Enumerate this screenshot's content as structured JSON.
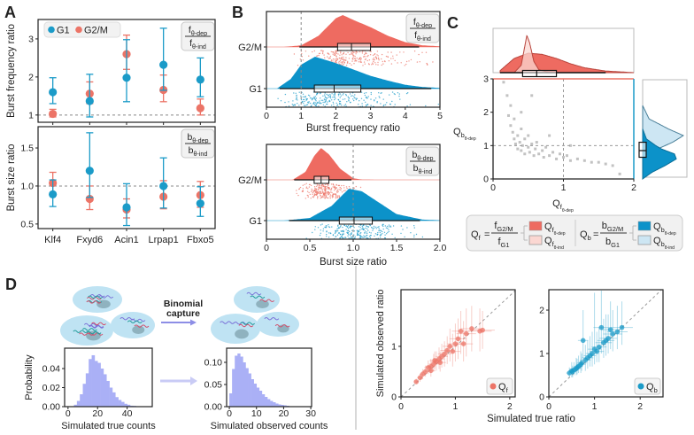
{
  "panels": {
    "a": "A",
    "b": "B",
    "c": "C",
    "d": "D"
  },
  "colors": {
    "g1": "#1b9bc8",
    "g2m": "#ec7467",
    "g1_fill": "#0c92c9",
    "g2m_fill": "#ee6b61",
    "light_red": "#fbd7d2",
    "light_blue": "#cde6f3",
    "hist": "#aab0f6",
    "scatter_gray": "#9a9a9a",
    "arrow": "#8d8ee6"
  },
  "legend_a": {
    "g1": "G1",
    "g2m": "G2/M"
  },
  "ratio_labels": {
    "f": {
      "num_main": "f",
      "num_sub": "θ-dep",
      "den_main": "f",
      "den_sub": "θ-ind"
    },
    "b": {
      "num_main": "b",
      "num_sub": "θ-dep",
      "den_main": "b",
      "den_sub": "θ-ind"
    }
  },
  "legend_c": {
    "qf": {
      "lhs_main": "Q",
      "lhs_sub": "f",
      "eq": "=",
      "num_main": "f",
      "num_sub": "G2/M",
      "den_main": "f",
      "den_sub": "G1",
      "dep": {
        "main": "Q",
        "sub": "f",
        "sub2": "θ-dep"
      },
      "ind": {
        "main": "Q",
        "sub": "f",
        "sub2": "θ-ind"
      }
    },
    "qb": {
      "lhs_main": "Q",
      "lhs_sub": "b",
      "eq": "=",
      "num_main": "b",
      "num_sub": "G2/M",
      "den_main": "b",
      "den_sub": "G1",
      "dep": {
        "main": "Q",
        "sub": "b",
        "sub2": "θ-dep"
      },
      "ind": {
        "main": "Q",
        "sub": "b",
        "sub2": "θ-ind"
      }
    }
  },
  "panel_d": {
    "capture_label": [
      "Binomial",
      "capture"
    ],
    "shared_xlabel": "Simulated true ratio",
    "legend_qf": {
      "main": "Q",
      "sub": "f"
    },
    "legend_qb": {
      "main": "Q",
      "sub": "b"
    }
  },
  "chart_data": [
    {
      "type": "errorbar",
      "ylabel": "Burst frequency ratio",
      "categories": [
        "Klf4",
        "Fxyd6",
        "Acin1",
        "Lrpap1",
        "Fbxo5"
      ],
      "ylim": [
        0.81,
        3.51
      ],
      "yticks": [
        1,
        2,
        3
      ],
      "ytick_labels": [
        "1",
        "2",
        "3"
      ],
      "reference_line": 1,
      "legend": "top-left",
      "series": [
        {
          "name": "G1",
          "values": [
            1.6,
            1.37,
            1.98,
            2.32,
            1.93
          ],
          "lower": [
            1.3,
            0.95,
            1.35,
            1.65,
            1.48
          ],
          "upper": [
            1.98,
            2.07,
            2.98,
            3.28,
            2.5
          ]
        },
        {
          "name": "G2/M",
          "values": [
            1.03,
            1.56,
            2.6,
            1.66,
            1.18
          ],
          "lower": [
            0.95,
            1.3,
            2.2,
            1.35,
            1.0
          ],
          "upper": [
            1.15,
            1.87,
            3.1,
            2.05,
            1.42
          ]
        }
      ]
    },
    {
      "type": "errorbar",
      "ylabel": "Burst size ratio",
      "categories": [
        "Klf4",
        "Fxyd6",
        "Acin1",
        "Lrpap1",
        "Fbxo5"
      ],
      "ylim": [
        0.44,
        1.78
      ],
      "yticks": [
        0.5,
        1.0,
        1.5
      ],
      "ytick_labels": [
        "0.5",
        "1.0",
        "1.5"
      ],
      "reference_line": 1,
      "series": [
        {
          "name": "G1",
          "values": [
            0.89,
            1.2,
            0.72,
            1.0,
            0.77
          ],
          "lower": [
            0.73,
            0.85,
            0.48,
            0.71,
            0.6
          ],
          "upper": [
            1.08,
            1.7,
            1.03,
            1.37,
            0.99
          ]
        },
        {
          "name": "G2/M",
          "values": [
            1.04,
            0.83,
            0.69,
            0.86,
            0.88
          ],
          "lower": [
            0.9,
            0.69,
            0.58,
            0.7,
            0.72
          ],
          "upper": [
            1.18,
            1.0,
            0.83,
            1.07,
            1.06
          ]
        }
      ]
    },
    {
      "type": "raincloud",
      "xlabel": "Burst frequency ratio",
      "xlim": [
        0,
        5
      ],
      "xticks": [
        0,
        1,
        2,
        3,
        4,
        5
      ],
      "xtick_labels": [
        "0",
        "1",
        "2",
        "3",
        "4",
        "5"
      ],
      "reference_line": 1,
      "categories": [
        "G2/M",
        "G1"
      ],
      "series": [
        {
          "name": "G2/M",
          "box": {
            "whisker_low": 0.95,
            "q1": 2.05,
            "median": 2.45,
            "q3": 3.0,
            "whisker_high": 4.4
          },
          "density": {
            "x": [
              0.5,
              1,
              1.5,
              2,
              2.2,
              2.5,
              3,
              3.5,
              4,
              4.5,
              5
            ],
            "y": [
              0,
              0.05,
              0.35,
              0.9,
              1,
              0.85,
              0.62,
              0.35,
              0.15,
              0.05,
              0.02
            ]
          }
        },
        {
          "name": "G1",
          "box": {
            "whisker_low": 0.38,
            "q1": 1.38,
            "median": 1.95,
            "q3": 2.72,
            "whisker_high": 4.75
          },
          "density": {
            "x": [
              0.3,
              0.7,
              1,
              1.4,
              2,
              2.5,
              3,
              3.5,
              4,
              4.5,
              5
            ],
            "y": [
              0,
              0.3,
              0.75,
              1,
              0.8,
              0.6,
              0.4,
              0.25,
              0.12,
              0.05,
              0.02
            ]
          }
        }
      ]
    },
    {
      "type": "raincloud",
      "xlabel": "Burst size ratio",
      "xlim": [
        0,
        2
      ],
      "xticks": [
        0,
        0.5,
        1,
        1.5,
        2
      ],
      "xtick_labels": [
        "0",
        "0.5",
        "1.0",
        "1.5",
        "2.0"
      ],
      "reference_line": 1,
      "categories": [
        "G2/M",
        "G1"
      ],
      "series": [
        {
          "name": "G2/M",
          "box": {
            "whisker_low": 0.32,
            "q1": 0.55,
            "median": 0.63,
            "q3": 0.72,
            "whisker_high": 0.98
          },
          "density": {
            "x": [
              0.3,
              0.45,
              0.55,
              0.63,
              0.72,
              0.85,
              1.0,
              1.1,
              1.25
            ],
            "y": [
              0,
              0.25,
              0.75,
              1,
              0.8,
              0.35,
              0.05,
              0.01,
              0
            ]
          }
        },
        {
          "name": "G1",
          "box": {
            "whisker_low": 0.26,
            "q1": 0.84,
            "median": 1.01,
            "q3": 1.22,
            "whisker_high": 1.77
          },
          "density": {
            "x": [
              0.2,
              0.5,
              0.75,
              0.95,
              1.1,
              1.3,
              1.5,
              1.8,
              2
            ],
            "y": [
              0,
              0.08,
              0.45,
              0.98,
              0.9,
              0.55,
              0.2,
              0.03,
              0.01
            ]
          }
        }
      ]
    },
    {
      "type": "scatter",
      "xlabel": {
        "main": "Q",
        "sub": "f",
        "sub2": "θ-dep"
      },
      "ylabel": {
        "main": "Q",
        "sub": "b",
        "sub2": "θ-dep"
      },
      "xlim": [
        0,
        2
      ],
      "ylim": [
        0,
        3
      ],
      "xticks": [
        0,
        1,
        2
      ],
      "xtick_labels": [
        "0",
        "1",
        "2"
      ],
      "yticks": [
        0,
        1,
        2,
        3
      ],
      "ytick_labels": [
        "0",
        "1",
        "2",
        "3"
      ],
      "reference_lines": {
        "x": 1,
        "y": 1
      },
      "points": [
        [
          0.15,
          2.9
        ],
        [
          0.2,
          2.5
        ],
        [
          0.22,
          1.9
        ],
        [
          0.25,
          1.6
        ],
        [
          0.25,
          2.2
        ],
        [
          0.28,
          1.4
        ],
        [
          0.3,
          1.2
        ],
        [
          0.3,
          1.8
        ],
        [
          0.32,
          1.05
        ],
        [
          0.35,
          1.3
        ],
        [
          0.35,
          0.9
        ],
        [
          0.38,
          1.1
        ],
        [
          0.4,
          1.5
        ],
        [
          0.4,
          0.85
        ],
        [
          0.42,
          1.0
        ],
        [
          0.45,
          1.2
        ],
        [
          0.45,
          0.75
        ],
        [
          0.5,
          0.95
        ],
        [
          0.5,
          1.3
        ],
        [
          0.52,
          0.8
        ],
        [
          0.55,
          1.05
        ],
        [
          0.58,
          0.7
        ],
        [
          0.6,
          0.9
        ],
        [
          0.62,
          1.1
        ],
        [
          0.65,
          0.75
        ],
        [
          0.7,
          0.85
        ],
        [
          0.72,
          0.65
        ],
        [
          0.75,
          0.95
        ],
        [
          0.8,
          0.7
        ],
        [
          0.85,
          0.8
        ],
        [
          0.9,
          0.6
        ],
        [
          0.95,
          0.75
        ],
        [
          1.0,
          0.65
        ],
        [
          1.05,
          0.7
        ],
        [
          1.1,
          0.55
        ],
        [
          1.2,
          0.6
        ],
        [
          1.3,
          0.55
        ],
        [
          1.4,
          0.5
        ],
        [
          1.5,
          0.5
        ],
        [
          1.6,
          0.45
        ],
        [
          1.7,
          0.4
        ],
        [
          1.8,
          0.15
        ],
        [
          0.55,
          2.5
        ],
        [
          0.4,
          2.0
        ],
        [
          0.8,
          1.3
        ],
        [
          1.1,
          1.0
        ]
      ],
      "marginal_x": {
        "dep": {
          "x": [
            0.1,
            0.3,
            0.5,
            0.7,
            0.9,
            1.1,
            1.3,
            1.6,
            2.0
          ],
          "y": [
            0.05,
            0.35,
            0.48,
            0.45,
            0.35,
            0.22,
            0.12,
            0.04,
            0
          ]
        },
        "ind": {
          "x": [
            0.3,
            0.4,
            0.45,
            0.48,
            0.52,
            0.58,
            0.65,
            0.8
          ],
          "y": [
            0,
            0.2,
            0.7,
            1,
            0.8,
            0.3,
            0.08,
            0
          ]
        },
        "box": {
          "whisker_low": 0.1,
          "q1": 0.42,
          "median": 0.62,
          "q3": 0.9,
          "whisker_high": 1.6
        }
      },
      "marginal_y": {
        "dep": {
          "x": [
            0,
            0.2,
            0.4,
            0.6,
            0.75,
            0.9,
            1.0,
            1.2,
            1.5
          ],
          "y": [
            0,
            0.25,
            0.6,
            0.9,
            0.85,
            0.5,
            0.35,
            0.1,
            0
          ]
        },
        "ind": {
          "x": [
            0.3,
            0.6,
            0.9,
            1.1,
            1.3,
            1.5,
            1.8,
            2.2
          ],
          "y": [
            0,
            0.1,
            0.35,
            0.7,
            0.95,
            0.6,
            0.15,
            0
          ]
        },
        "box": {
          "whisker_low": 0.55,
          "q1": 0.65,
          "median": 0.85,
          "q3": 1.1,
          "whisker_high": 1.2
        }
      }
    },
    {
      "type": "bar",
      "xlabel": "Simulated true counts",
      "ylabel": "Probability",
      "xlim": [
        -2.3,
        57
      ],
      "ylim": [
        0,
        0.0614
      ],
      "xticks": [
        0,
        20,
        40
      ],
      "xtick_labels": [
        "0",
        "20",
        "40"
      ],
      "yticks": [
        0,
        0.02,
        0.04
      ],
      "ytick_labels": [
        "0.00",
        "0.02",
        "0.04"
      ],
      "bin_start": 0,
      "bin_width": 2,
      "values": [
        0,
        0.0005,
        0.002,
        0.006,
        0.013,
        0.024,
        0.035,
        0.05,
        0.054,
        0.048,
        0.046,
        0.04,
        0.034,
        0.027,
        0.02,
        0.015,
        0.01,
        0.007,
        0.005,
        0.003,
        0.002,
        0.001,
        0.0008,
        0.0004,
        0.0002
      ]
    },
    {
      "type": "bar",
      "xlabel": "Simulated observed counts",
      "ylabel": "",
      "xlim": [
        -1,
        30.3
      ],
      "ylim": [
        0,
        0.132
      ],
      "xticks": [
        0,
        10,
        20,
        30
      ],
      "xtick_labels": [
        "0",
        "10",
        "20",
        "30"
      ],
      "yticks": [
        0,
        0.05,
        0.1
      ],
      "ytick_labels": [
        "0.00",
        "0.05",
        "0.10"
      ],
      "bin_start": 0,
      "bin_width": 1,
      "values": [
        0.03,
        0.085,
        0.115,
        0.12,
        0.113,
        0.1,
        0.087,
        0.075,
        0.062,
        0.052,
        0.043,
        0.036,
        0.028,
        0.022,
        0.017,
        0.013,
        0.01,
        0.007,
        0.005,
        0.004,
        0.003,
        0.002,
        0.001,
        0.001,
        0.0005
      ]
    },
    {
      "type": "scatter",
      "ylabel": "Simulated observed ratio",
      "series_name": "Qf",
      "xlim": [
        0,
        2.1
      ],
      "ylim": [
        0,
        2.12
      ],
      "xticks": [
        0,
        1,
        2
      ],
      "xtick_labels": [
        "0",
        "1",
        "2"
      ],
      "yticks": [
        0,
        1
      ],
      "ytick_labels": [
        "0",
        "1"
      ],
      "reference_line": "y=x",
      "legend": "bottom-right",
      "points": [
        [
          0.28,
          0.3,
          0.25,
          0.36
        ],
        [
          0.35,
          0.38,
          0.3,
          0.46
        ],
        [
          0.4,
          0.45,
          0.35,
          0.55
        ],
        [
          0.45,
          0.5,
          0.4,
          0.62
        ],
        [
          0.5,
          0.58,
          0.45,
          0.72
        ],
        [
          0.55,
          0.6,
          0.47,
          0.75
        ],
        [
          0.6,
          0.65,
          0.5,
          0.85
        ],
        [
          0.62,
          0.72,
          0.55,
          0.9
        ],
        [
          0.7,
          0.75,
          0.55,
          0.98
        ],
        [
          0.72,
          0.68,
          0.5,
          0.9
        ],
        [
          0.8,
          0.85,
          0.6,
          1.1
        ],
        [
          0.85,
          0.92,
          0.65,
          1.2
        ],
        [
          0.9,
          1.0,
          0.7,
          1.35
        ],
        [
          0.95,
          0.9,
          0.6,
          1.25
        ],
        [
          1.0,
          1.05,
          0.7,
          1.45
        ],
        [
          1.05,
          1.15,
          0.75,
          1.55
        ],
        [
          1.1,
          1.3,
          0.85,
          1.7
        ],
        [
          1.15,
          1.05,
          0.7,
          1.5
        ],
        [
          1.2,
          1.25,
          0.8,
          1.75
        ],
        [
          1.3,
          1.35,
          0.9,
          1.8
        ],
        [
          1.45,
          1.3,
          0.9,
          1.75
        ],
        [
          1.5,
          1.32,
          0.95,
          1.7
        ],
        [
          0.55,
          0.52,
          0.4,
          0.66
        ],
        [
          0.65,
          0.7,
          0.52,
          0.9
        ],
        [
          0.75,
          0.8,
          0.58,
          1.05
        ]
      ]
    },
    {
      "type": "scatter",
      "ylabel": "",
      "series_name": "Qb",
      "xlim": [
        0,
        2.5
      ],
      "ylim": [
        0,
        2.47
      ],
      "xticks": [
        0,
        1,
        2
      ],
      "xtick_labels": [
        "0",
        "1",
        "2"
      ],
      "yticks": [
        0,
        1,
        2
      ],
      "ytick_labels": [
        "0",
        "1",
        "2"
      ],
      "reference_line": "y=x",
      "legend": "bottom-right",
      "points": [
        [
          0.45,
          0.55,
          0.45,
          0.68
        ],
        [
          0.5,
          0.6,
          0.45,
          0.8
        ],
        [
          0.55,
          0.62,
          0.5,
          0.8
        ],
        [
          0.6,
          0.65,
          0.5,
          0.9
        ],
        [
          0.65,
          0.7,
          0.55,
          0.95
        ],
        [
          0.7,
          0.75,
          0.55,
          1.05
        ],
        [
          0.75,
          1.3,
          0.9,
          2.0
        ],
        [
          0.8,
          0.85,
          0.6,
          1.2
        ],
        [
          0.85,
          0.9,
          0.65,
          1.3
        ],
        [
          0.9,
          0.95,
          0.7,
          1.4
        ],
        [
          0.95,
          1.0,
          0.7,
          1.5
        ],
        [
          1.0,
          1.1,
          0.75,
          2.4
        ],
        [
          1.05,
          1.05,
          0.8,
          1.5
        ],
        [
          1.1,
          1.15,
          0.8,
          1.6
        ],
        [
          1.15,
          1.6,
          1.0,
          2.45
        ],
        [
          1.2,
          1.25,
          0.9,
          1.8
        ],
        [
          1.25,
          1.3,
          0.95,
          1.9
        ],
        [
          1.3,
          1.35,
          1.0,
          1.9
        ],
        [
          1.35,
          1.55,
          1.1,
          2.2
        ],
        [
          1.4,
          1.45,
          1.05,
          2.0
        ],
        [
          1.5,
          1.5,
          1.1,
          2.1
        ],
        [
          1.6,
          1.6,
          1.2,
          2.2
        ],
        [
          0.52,
          0.58,
          0.45,
          0.72
        ],
        [
          0.62,
          0.68,
          0.52,
          0.88
        ],
        [
          0.72,
          0.78,
          0.6,
          1.0
        ]
      ]
    }
  ]
}
